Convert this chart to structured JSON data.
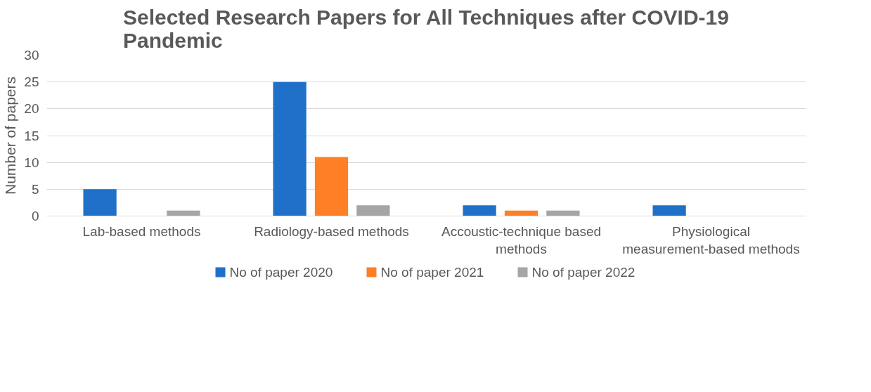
{
  "chart_data": {
    "type": "bar",
    "title": "Selected Research Papers for All Techniques after COVID-19 Pandemic",
    "ylabel": "Number of papers",
    "categories": [
      "Lab-based methods",
      "Radiology-based methods",
      "Accoustic-technique based methods",
      "Physiological measurement-based methods"
    ],
    "series": [
      {
        "name": "No of paper 2020",
        "color": "#1f70c8",
        "values": [
          5,
          25,
          2,
          2
        ]
      },
      {
        "name": "No of paper 2021",
        "color": "#ff7f27",
        "values": [
          0,
          11,
          1,
          0
        ]
      },
      {
        "name": "No of paper 2022",
        "color": "#a5a5a5",
        "values": [
          1,
          2,
          1,
          0
        ]
      }
    ],
    "ylim": [
      0,
      30
    ],
    "yticks": [
      0,
      5,
      10,
      15,
      20,
      25,
      30
    ],
    "grid": "y",
    "legend": "bottom"
  }
}
